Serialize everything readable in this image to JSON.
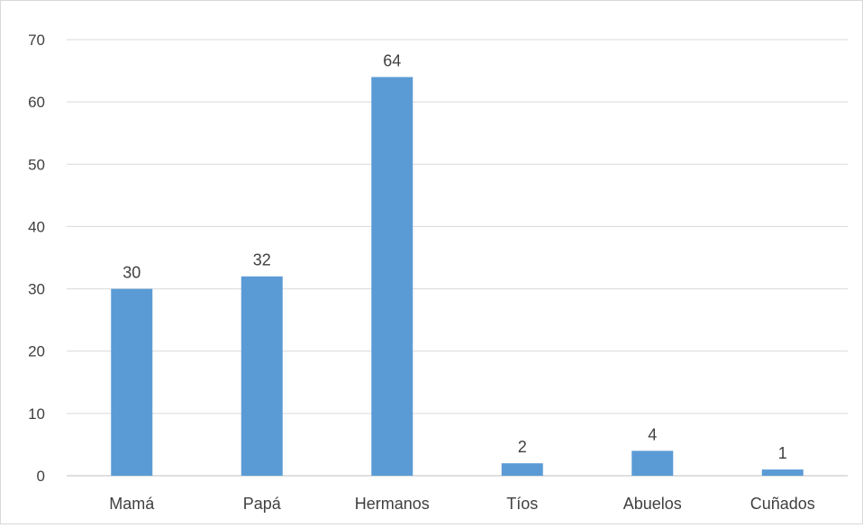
{
  "chart_data": {
    "type": "bar",
    "categories": [
      "Mamá",
      "Papá",
      "Hermanos",
      "Tíos",
      "Abuelos",
      "Cuñados"
    ],
    "values": [
      30,
      32,
      64,
      2,
      4,
      1
    ],
    "ylim": [
      0,
      70
    ],
    "yticks": [
      0,
      10,
      20,
      30,
      40,
      50,
      60,
      70
    ],
    "grid": true,
    "data_labels": true,
    "bar_color": "#5b9bd5",
    "title": "",
    "xlabel": "",
    "ylabel": ""
  }
}
